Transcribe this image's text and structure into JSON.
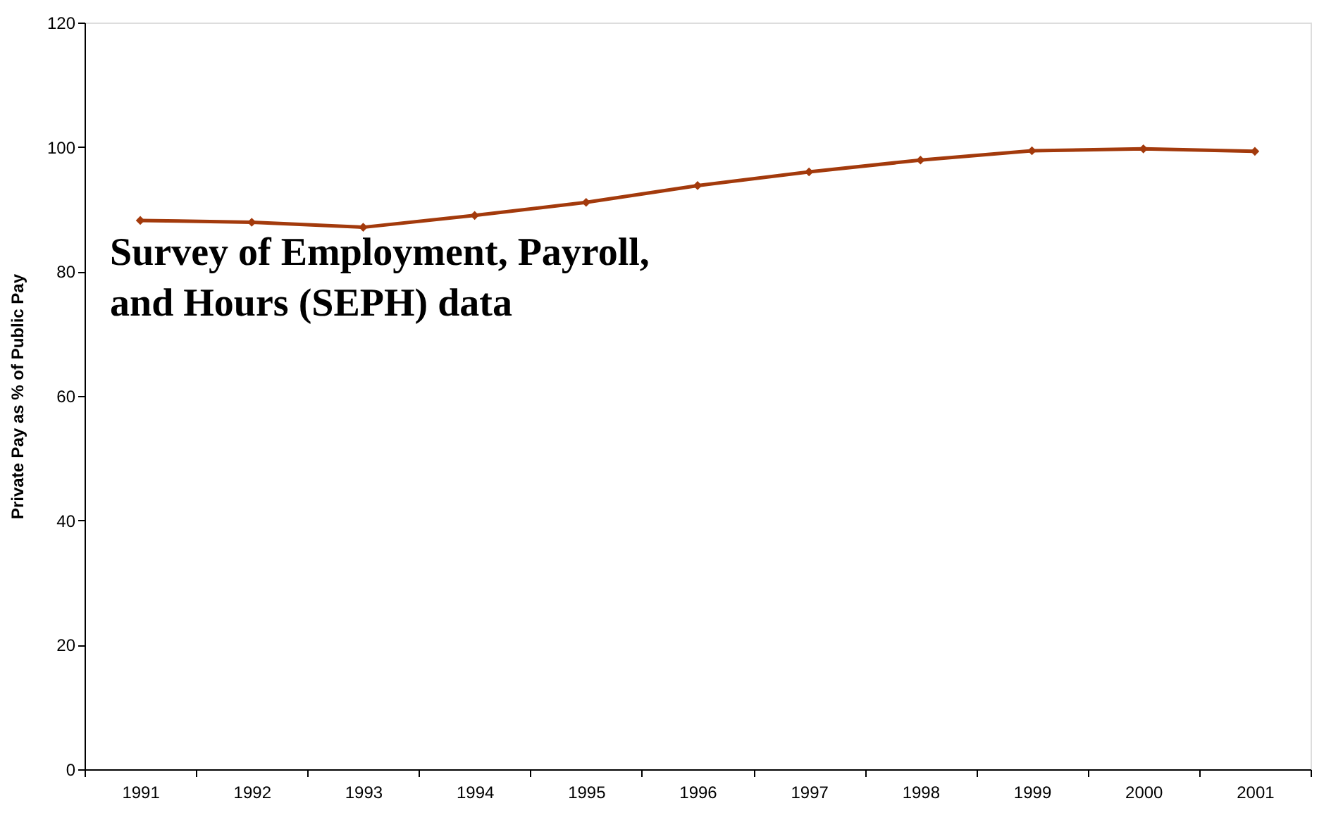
{
  "chart_data": {
    "type": "line",
    "ylabel": "Private Pay as % of Public Pay",
    "categories": [
      "1991",
      "1992",
      "1993",
      "1994",
      "1995",
      "1996",
      "1997",
      "1998",
      "1999",
      "2000",
      "2001"
    ],
    "series": [
      {
        "color": "#a33a0c",
        "values": [
          88.2,
          87.9,
          87.1,
          89.0,
          91.1,
          93.8,
          96.0,
          97.9,
          99.4,
          99.7,
          99.3
        ]
      }
    ],
    "ylim": [
      0,
      120
    ],
    "yticks": [
      0,
      20,
      40,
      60,
      80,
      100,
      120
    ],
    "grid": false,
    "marker": "diamond",
    "line_style": "solid",
    "annotations": [
      "Survey of Employment, Payroll,\nand Hours (SEPH) data"
    ]
  }
}
